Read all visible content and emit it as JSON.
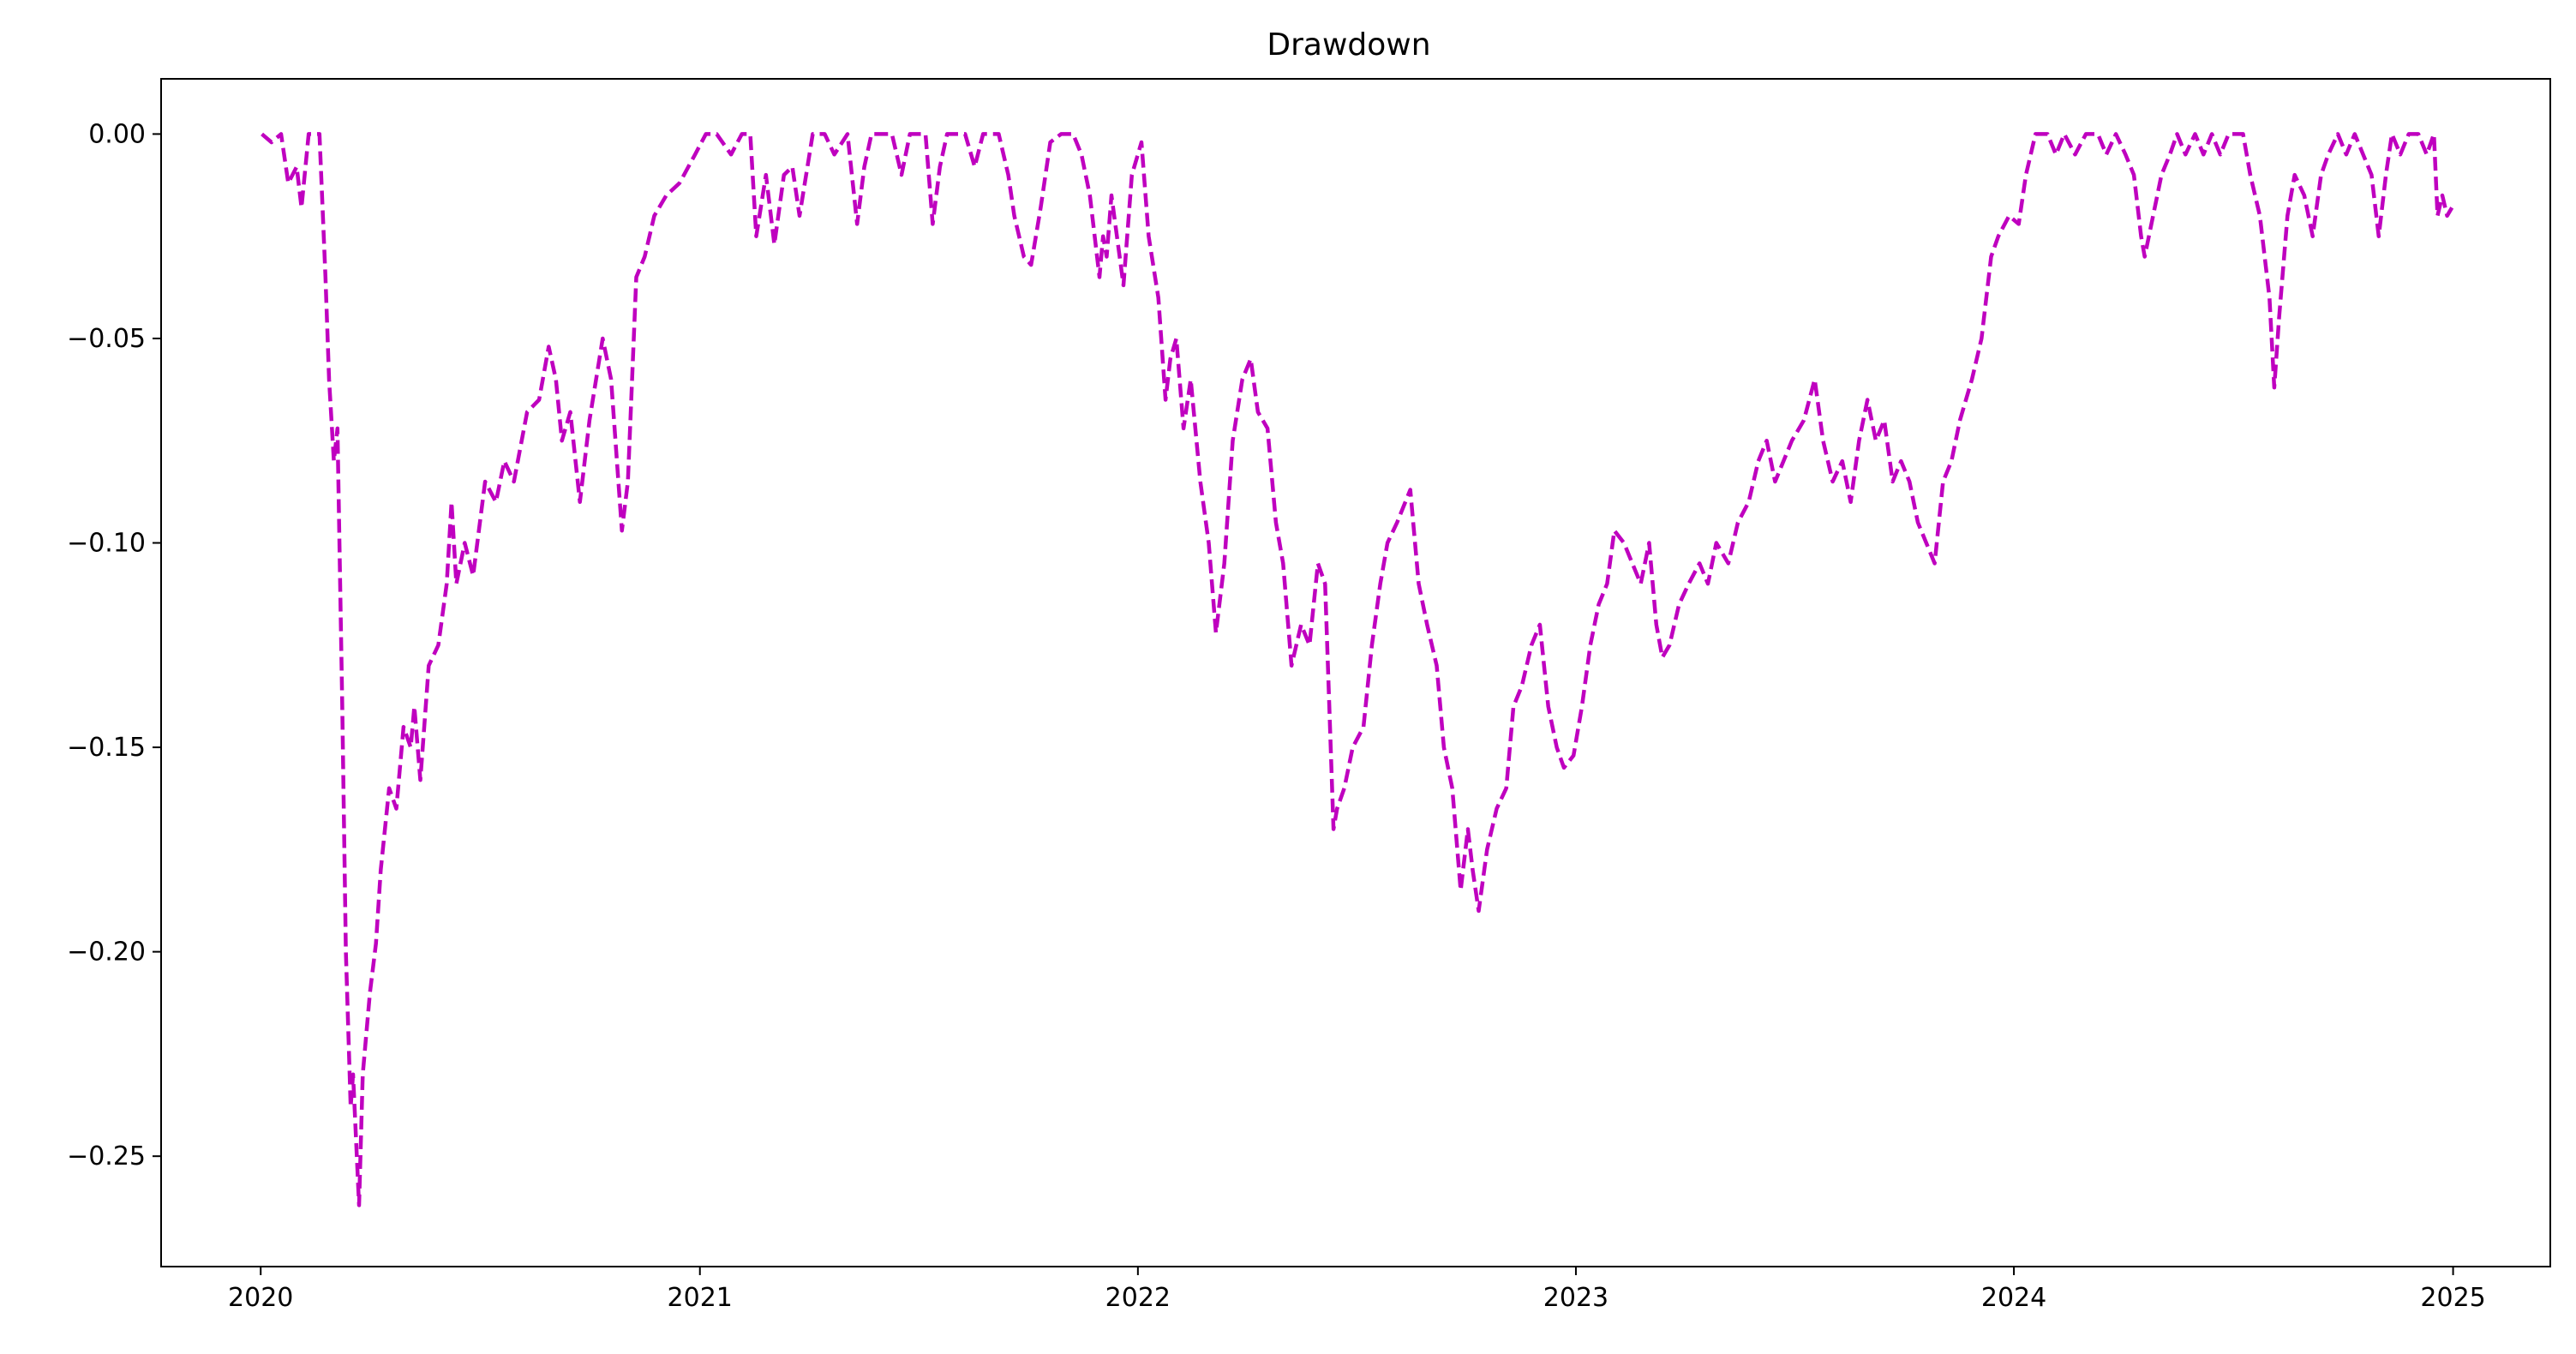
{
  "chart_data": {
    "type": "line",
    "title": "Drawdown",
    "xlabel": "",
    "ylabel": "",
    "x_ticks": [
      "2020",
      "2021",
      "2022",
      "2023",
      "2024",
      "2025"
    ],
    "y_ticks": [
      0.0,
      -0.05,
      -0.1,
      -0.15,
      -0.2,
      -0.25
    ],
    "y_tick_labels": [
      "0.00",
      "−0.05",
      "−0.10",
      "−0.15",
      "−0.20",
      "−0.25"
    ],
    "xlim": [
      "2019-10-10",
      "2025-03-23"
    ],
    "ylim": [
      -0.277,
      0.0135
    ],
    "grid": false,
    "legend": "none",
    "series": [
      {
        "color": "#bf00bf",
        "line_style": "dashed",
        "points": [
          [
            "2020-01-02",
            0.0
          ],
          [
            "2020-01-10",
            -0.002
          ],
          [
            "2020-01-18",
            0.0
          ],
          [
            "2020-01-24",
            -0.012
          ],
          [
            "2020-01-31",
            -0.008
          ],
          [
            "2020-02-04",
            -0.018
          ],
          [
            "2020-02-10",
            0.0
          ],
          [
            "2020-02-19",
            0.0
          ],
          [
            "2020-02-24",
            -0.035
          ],
          [
            "2020-02-27",
            -0.06
          ],
          [
            "2020-03-02",
            -0.08
          ],
          [
            "2020-03-05",
            -0.072
          ],
          [
            "2020-03-09",
            -0.14
          ],
          [
            "2020-03-12",
            -0.2
          ],
          [
            "2020-03-16",
            -0.238
          ],
          [
            "2020-03-18",
            -0.23
          ],
          [
            "2020-03-23",
            -0.262
          ],
          [
            "2020-03-26",
            -0.23
          ],
          [
            "2020-04-01",
            -0.21
          ],
          [
            "2020-04-06",
            -0.198
          ],
          [
            "2020-04-10",
            -0.18
          ],
          [
            "2020-04-17",
            -0.16
          ],
          [
            "2020-04-23",
            -0.165
          ],
          [
            "2020-04-29",
            -0.145
          ],
          [
            "2020-05-05",
            -0.15
          ],
          [
            "2020-05-08",
            -0.14
          ],
          [
            "2020-05-13",
            -0.158
          ],
          [
            "2020-05-20",
            -0.13
          ],
          [
            "2020-05-28",
            -0.125
          ],
          [
            "2020-06-04",
            -0.11
          ],
          [
            "2020-06-08",
            -0.09
          ],
          [
            "2020-06-12",
            -0.11
          ],
          [
            "2020-06-19",
            -0.1
          ],
          [
            "2020-06-26",
            -0.108
          ],
          [
            "2020-07-06",
            -0.085
          ],
          [
            "2020-07-15",
            -0.09
          ],
          [
            "2020-07-22",
            -0.08
          ],
          [
            "2020-07-30",
            -0.085
          ],
          [
            "2020-08-10",
            -0.068
          ],
          [
            "2020-08-20",
            -0.065
          ],
          [
            "2020-08-28",
            -0.052
          ],
          [
            "2020-09-03",
            -0.06
          ],
          [
            "2020-09-08",
            -0.075
          ],
          [
            "2020-09-15",
            -0.068
          ],
          [
            "2020-09-23",
            -0.09
          ],
          [
            "2020-10-01",
            -0.07
          ],
          [
            "2020-10-12",
            -0.05
          ],
          [
            "2020-10-19",
            -0.06
          ],
          [
            "2020-10-28",
            -0.097
          ],
          [
            "2020-11-02",
            -0.085
          ],
          [
            "2020-11-09",
            -0.035
          ],
          [
            "2020-11-16",
            -0.03
          ],
          [
            "2020-11-24",
            -0.02
          ],
          [
            "2020-12-04",
            -0.015
          ],
          [
            "2020-12-15",
            -0.012
          ],
          [
            "2020-12-28",
            -0.005
          ],
          [
            "2021-01-06",
            0.0
          ],
          [
            "2021-01-15",
            0.0
          ],
          [
            "2021-01-27",
            -0.005
          ],
          [
            "2021-02-05",
            0.0
          ],
          [
            "2021-02-12",
            0.0
          ],
          [
            "2021-02-17",
            -0.025
          ],
          [
            "2021-02-25",
            -0.01
          ],
          [
            "2021-03-04",
            -0.027
          ],
          [
            "2021-03-12",
            -0.01
          ],
          [
            "2021-03-19",
            -0.008
          ],
          [
            "2021-03-25",
            -0.02
          ],
          [
            "2021-04-05",
            0.0
          ],
          [
            "2021-04-15",
            0.0
          ],
          [
            "2021-04-23",
            -0.005
          ],
          [
            "2021-05-04",
            0.0
          ],
          [
            "2021-05-12",
            -0.022
          ],
          [
            "2021-05-18",
            -0.008
          ],
          [
            "2021-05-24",
            0.0
          ],
          [
            "2021-06-10",
            0.0
          ],
          [
            "2021-06-18",
            -0.01
          ],
          [
            "2021-06-25",
            0.0
          ],
          [
            "2021-07-08",
            0.0
          ],
          [
            "2021-07-14",
            -0.022
          ],
          [
            "2021-07-20",
            -0.008
          ],
          [
            "2021-07-26",
            0.0
          ],
          [
            "2021-08-10",
            0.0
          ],
          [
            "2021-08-18",
            -0.008
          ],
          [
            "2021-08-25",
            0.0
          ],
          [
            "2021-09-07",
            0.0
          ],
          [
            "2021-09-15",
            -0.01
          ],
          [
            "2021-09-20",
            -0.02
          ],
          [
            "2021-09-28",
            -0.03
          ],
          [
            "2021-10-04",
            -0.032
          ],
          [
            "2021-10-12",
            -0.018
          ],
          [
            "2021-10-20",
            -0.002
          ],
          [
            "2021-10-29",
            0.0
          ],
          [
            "2021-11-08",
            0.0
          ],
          [
            "2021-11-15",
            -0.005
          ],
          [
            "2021-11-22",
            -0.015
          ],
          [
            "2021-11-30",
            -0.035
          ],
          [
            "2021-12-03",
            -0.025
          ],
          [
            "2021-12-06",
            -0.03
          ],
          [
            "2021-12-10",
            -0.015
          ],
          [
            "2021-12-20",
            -0.037
          ],
          [
            "2021-12-27",
            -0.01
          ],
          [
            "2022-01-04",
            -0.002
          ],
          [
            "2022-01-10",
            -0.025
          ],
          [
            "2022-01-18",
            -0.04
          ],
          [
            "2022-01-24",
            -0.065
          ],
          [
            "2022-01-28",
            -0.055
          ],
          [
            "2022-02-02",
            -0.05
          ],
          [
            "2022-02-08",
            -0.072
          ],
          [
            "2022-02-14",
            -0.06
          ],
          [
            "2022-02-22",
            -0.085
          ],
          [
            "2022-03-01",
            -0.1
          ],
          [
            "2022-03-07",
            -0.122
          ],
          [
            "2022-03-14",
            -0.105
          ],
          [
            "2022-03-21",
            -0.075
          ],
          [
            "2022-03-29",
            -0.06
          ],
          [
            "2022-04-05",
            -0.055
          ],
          [
            "2022-04-11",
            -0.068
          ],
          [
            "2022-04-19",
            -0.072
          ],
          [
            "2022-04-26",
            -0.095
          ],
          [
            "2022-05-02",
            -0.105
          ],
          [
            "2022-05-09",
            -0.13
          ],
          [
            "2022-05-17",
            -0.12
          ],
          [
            "2022-05-24",
            -0.125
          ],
          [
            "2022-05-31",
            -0.105
          ],
          [
            "2022-06-06",
            -0.11
          ],
          [
            "2022-06-13",
            -0.17
          ],
          [
            "2022-06-16",
            -0.165
          ],
          [
            "2022-06-22",
            -0.16
          ],
          [
            "2022-06-29",
            -0.15
          ],
          [
            "2022-07-08",
            -0.145
          ],
          [
            "2022-07-15",
            -0.125
          ],
          [
            "2022-07-22",
            -0.11
          ],
          [
            "2022-07-28",
            -0.1
          ],
          [
            "2022-08-05",
            -0.095
          ],
          [
            "2022-08-16",
            -0.087
          ],
          [
            "2022-08-23",
            -0.11
          ],
          [
            "2022-08-30",
            -0.12
          ],
          [
            "2022-09-07",
            -0.13
          ],
          [
            "2022-09-13",
            -0.15
          ],
          [
            "2022-09-20",
            -0.16
          ],
          [
            "2022-09-27",
            -0.185
          ],
          [
            "2022-10-03",
            -0.17
          ],
          [
            "2022-10-07",
            -0.18
          ],
          [
            "2022-10-12",
            -0.19
          ],
          [
            "2022-10-19",
            -0.175
          ],
          [
            "2022-10-27",
            -0.165
          ],
          [
            "2022-11-04",
            -0.16
          ],
          [
            "2022-11-10",
            -0.14
          ],
          [
            "2022-11-17",
            -0.135
          ],
          [
            "2022-11-25",
            -0.125
          ],
          [
            "2022-12-02",
            -0.12
          ],
          [
            "2022-12-09",
            -0.14
          ],
          [
            "2022-12-16",
            -0.15
          ],
          [
            "2022-12-22",
            -0.155
          ],
          [
            "2022-12-30",
            -0.152
          ],
          [
            "2023-01-06",
            -0.14
          ],
          [
            "2023-01-13",
            -0.125
          ],
          [
            "2023-01-20",
            -0.115
          ],
          [
            "2023-01-27",
            -0.11
          ],
          [
            "2023-02-02",
            -0.097
          ],
          [
            "2023-02-10",
            -0.1
          ],
          [
            "2023-02-17",
            -0.105
          ],
          [
            "2023-02-24",
            -0.11
          ],
          [
            "2023-03-03",
            -0.1
          ],
          [
            "2023-03-09",
            -0.12
          ],
          [
            "2023-03-14",
            -0.128
          ],
          [
            "2023-03-20",
            -0.125
          ],
          [
            "2023-03-28",
            -0.115
          ],
          [
            "2023-04-05",
            -0.11
          ],
          [
            "2023-04-14",
            -0.105
          ],
          [
            "2023-04-21",
            -0.11
          ],
          [
            "2023-04-28",
            -0.1
          ],
          [
            "2023-05-08",
            -0.105
          ],
          [
            "2023-05-16",
            -0.095
          ],
          [
            "2023-05-25",
            -0.09
          ],
          [
            "2023-06-02",
            -0.08
          ],
          [
            "2023-06-09",
            -0.075
          ],
          [
            "2023-06-16",
            -0.085
          ],
          [
            "2023-06-23",
            -0.08
          ],
          [
            "2023-06-30",
            -0.075
          ],
          [
            "2023-07-10",
            -0.07
          ],
          [
            "2023-07-19",
            -0.06
          ],
          [
            "2023-07-26",
            -0.075
          ],
          [
            "2023-08-03",
            -0.085
          ],
          [
            "2023-08-11",
            -0.08
          ],
          [
            "2023-08-18",
            -0.09
          ],
          [
            "2023-08-25",
            -0.075
          ],
          [
            "2023-09-01",
            -0.065
          ],
          [
            "2023-09-08",
            -0.075
          ],
          [
            "2023-09-15",
            -0.07
          ],
          [
            "2023-09-22",
            -0.085
          ],
          [
            "2023-09-29",
            -0.08
          ],
          [
            "2023-10-06",
            -0.085
          ],
          [
            "2023-10-13",
            -0.095
          ],
          [
            "2023-10-20",
            -0.1
          ],
          [
            "2023-10-27",
            -0.105
          ],
          [
            "2023-11-03",
            -0.085
          ],
          [
            "2023-11-10",
            -0.08
          ],
          [
            "2023-11-17",
            -0.07
          ],
          [
            "2023-11-27",
            -0.06
          ],
          [
            "2023-12-05",
            -0.05
          ],
          [
            "2023-12-13",
            -0.03
          ],
          [
            "2023-12-19",
            -0.025
          ],
          [
            "2023-12-28",
            -0.02
          ],
          [
            "2024-01-05",
            -0.022
          ],
          [
            "2024-01-11",
            -0.01
          ],
          [
            "2024-01-19",
            0.0
          ],
          [
            "2024-01-29",
            0.0
          ],
          [
            "2024-02-05",
            -0.005
          ],
          [
            "2024-02-12",
            0.0
          ],
          [
            "2024-02-21",
            -0.005
          ],
          [
            "2024-03-01",
            0.0
          ],
          [
            "2024-03-11",
            0.0
          ],
          [
            "2024-03-18",
            -0.005
          ],
          [
            "2024-03-26",
            0.0
          ],
          [
            "2024-04-03",
            -0.005
          ],
          [
            "2024-04-10",
            -0.01
          ],
          [
            "2024-04-16",
            -0.025
          ],
          [
            "2024-04-19",
            -0.03
          ],
          [
            "2024-04-26",
            -0.02
          ],
          [
            "2024-05-03",
            -0.01
          ],
          [
            "2024-05-10",
            -0.005
          ],
          [
            "2024-05-16",
            0.0
          ],
          [
            "2024-05-23",
            -0.005
          ],
          [
            "2024-05-31",
            0.0
          ],
          [
            "2024-06-07",
            -0.005
          ],
          [
            "2024-06-14",
            0.0
          ],
          [
            "2024-06-21",
            -0.005
          ],
          [
            "2024-06-28",
            0.0
          ],
          [
            "2024-07-10",
            0.0
          ],
          [
            "2024-07-16",
            -0.01
          ],
          [
            "2024-07-24",
            -0.02
          ],
          [
            "2024-08-01",
            -0.04
          ],
          [
            "2024-08-05",
            -0.062
          ],
          [
            "2024-08-09",
            -0.045
          ],
          [
            "2024-08-16",
            -0.02
          ],
          [
            "2024-08-22",
            -0.01
          ],
          [
            "2024-08-30",
            -0.015
          ],
          [
            "2024-09-06",
            -0.025
          ],
          [
            "2024-09-13",
            -0.01
          ],
          [
            "2024-09-19",
            -0.005
          ],
          [
            "2024-09-27",
            0.0
          ],
          [
            "2024-10-04",
            -0.005
          ],
          [
            "2024-10-11",
            0.0
          ],
          [
            "2024-10-18",
            -0.005
          ],
          [
            "2024-10-25",
            -0.01
          ],
          [
            "2024-10-31",
            -0.025
          ],
          [
            "2024-11-06",
            -0.01
          ],
          [
            "2024-11-11",
            0.0
          ],
          [
            "2024-11-18",
            -0.005
          ],
          [
            "2024-11-25",
            0.0
          ],
          [
            "2024-12-03",
            0.0
          ],
          [
            "2024-12-10",
            -0.005
          ],
          [
            "2024-12-16",
            0.0
          ],
          [
            "2024-12-19",
            -0.02
          ],
          [
            "2024-12-23",
            -0.015
          ],
          [
            "2024-12-27",
            -0.02
          ],
          [
            "2024-12-31",
            -0.018
          ]
        ]
      }
    ]
  }
}
